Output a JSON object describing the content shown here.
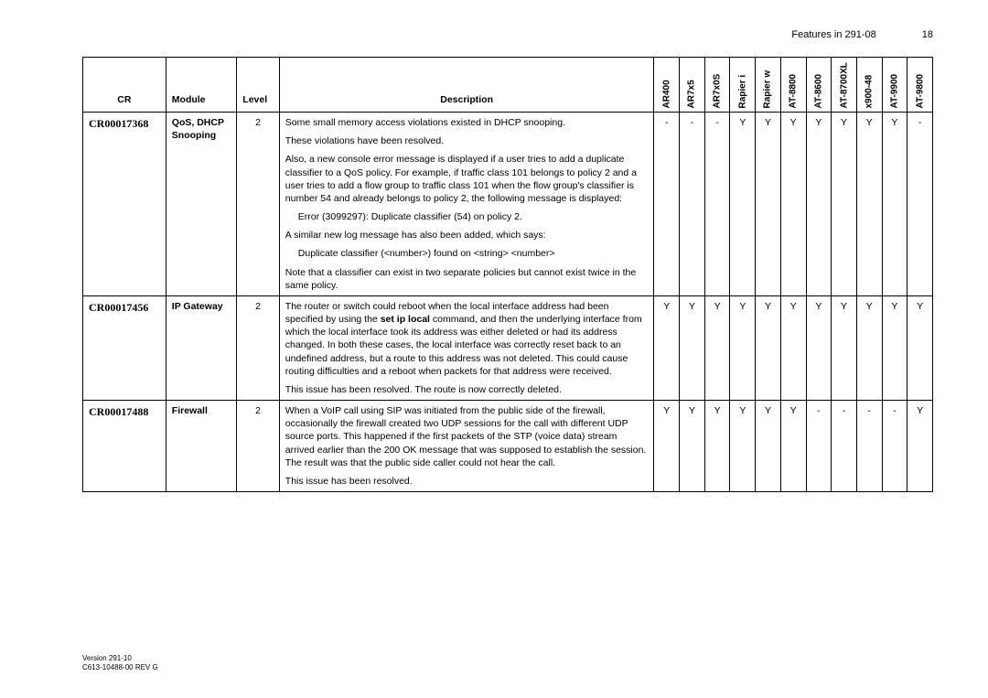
{
  "header": {
    "title": "Features in 291-08",
    "page_num": "18"
  },
  "columns": {
    "cr": "CR",
    "module": "Module",
    "level": "Level",
    "description": "Description",
    "products": [
      "AR400",
      "AR7x5",
      "AR7x0S",
      "Rapier i",
      "Rapier w",
      "AT-8800",
      "AT-8600",
      "AT-8700XL",
      "x900-48",
      "AT-9900",
      "AT-9800"
    ]
  },
  "rows": [
    {
      "cr": "CR00017368",
      "module": "QoS, DHCP Snooping",
      "level": "2",
      "desc": {
        "p1": "Some small memory access violations existed in DHCP snooping.",
        "p2": "These violations have been resolved.",
        "p3": "Also, a new console error message is displayed if a user tries to add a duplicate classifier to a QoS policy. For example, if traffic class 101 belongs to policy 2 and a user tries to add a flow group to traffic class 101 when the flow group's classifier is number 54 and already belongs to policy 2, the following message is displayed:",
        "p4": "Error (3099297): Duplicate classifier (54) on policy 2.",
        "p5": "A similar new log message has also been added, which says:",
        "p6": "Duplicate classifier (<number>) found on <string> <number>",
        "p7": "Note that a classifier can exist in two separate policies but cannot exist twice in the same policy."
      },
      "products": [
        "-",
        "-",
        "-",
        "Y",
        "Y",
        "Y",
        "Y",
        "Y",
        "Y",
        "Y",
        "-"
      ]
    },
    {
      "cr": "CR00017456",
      "module": "IP Gateway",
      "level": "2",
      "desc": {
        "p1_a": "The router or switch could reboot when the local interface address had been specified by using the ",
        "p1_bold": "set ip local",
        "p1_b": " command, and then the underlying interface from which the local interface took its address was either deleted or had its address changed. In both these cases, the local interface was correctly reset back to an undefined address, but a route to this address was not deleted. This could cause routing difficulties and a reboot when packets for that address were received.",
        "p2": "This issue has been resolved. The route is now correctly deleted."
      },
      "products": [
        "Y",
        "Y",
        "Y",
        "Y",
        "Y",
        "Y",
        "Y",
        "Y",
        "Y",
        "Y",
        "Y"
      ]
    },
    {
      "cr": "CR00017488",
      "module": "Firewall",
      "level": "2",
      "desc": {
        "p1": "When a VoIP call using SIP was initiated from the public side of the firewall, occasionally the firewall created two UDP sessions for the call with different UDP source ports. This happened if the first packets of the STP (voice data) stream arrived earlier than the 200 OK message that was supposed to establish the session. The result was that the public side caller could not hear the call.",
        "p2": "This issue has been resolved."
      },
      "products": [
        "Y",
        "Y",
        "Y",
        "Y",
        "Y",
        "Y",
        "-",
        "-",
        "-",
        "-",
        "Y"
      ]
    }
  ],
  "footer": {
    "l1": "Version 291-10",
    "l2": "C613-10488-00 REV G"
  }
}
